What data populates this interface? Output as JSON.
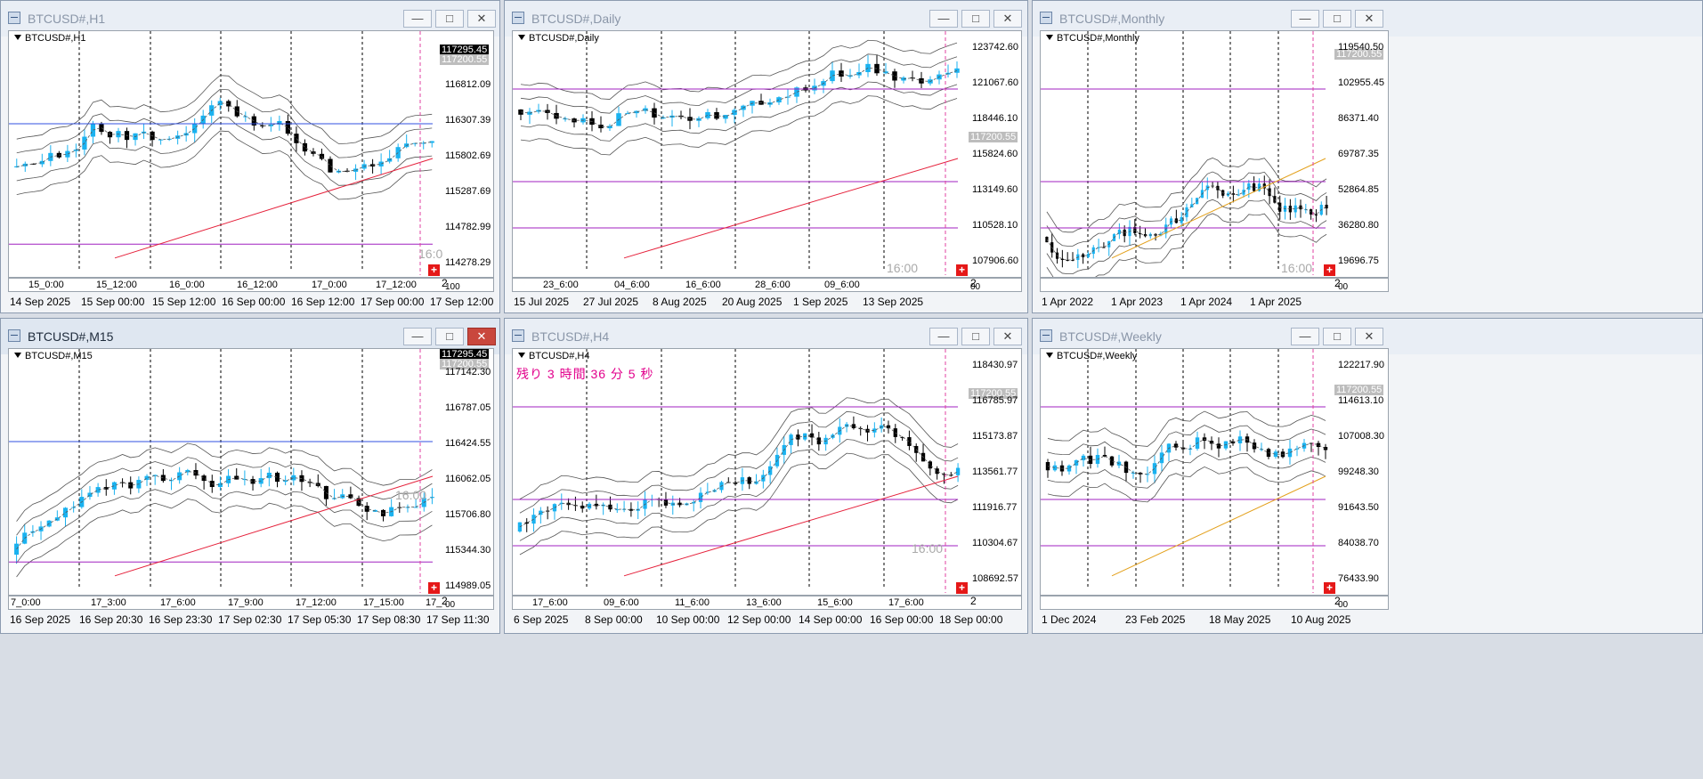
{
  "windows": [
    {
      "id": "h1",
      "title": "BTCUSD#,H1",
      "chart_label": "BTCUSD#,H1",
      "active": false,
      "prices": [
        "116812.09",
        "116307.39",
        "115802.69",
        "115287.69",
        "114782.99",
        "114278.29"
      ],
      "tag_ask": "117295.45",
      "tag_bid": "117200.55",
      "time_ticks": [
        "15_0:00",
        "15_12:00",
        "16_0:00",
        "16_12:00",
        "17_0:00",
        "17_12:00"
      ],
      "dates": [
        "14 Sep 2025",
        "15 Sep 00:00",
        "15 Sep 12:00",
        "16 Sep 00:00",
        "16 Sep 12:00",
        "17 Sep 00:00",
        "17 Sep 12:00"
      ],
      "session_label": "16:0",
      "scale_label": "2",
      "scale_sub": "100"
    },
    {
      "id": "daily",
      "title": "BTCUSD#,Daily",
      "chart_label": "BTCUSD#,Daily",
      "active": false,
      "prices": [
        "123742.60",
        "121067.60",
        "118446.10",
        "115824.60",
        "113149.60",
        "110528.10",
        "107906.60"
      ],
      "tag_bid": "117200.55",
      "time_ticks": [
        "23_6:00",
        "04_6:00",
        "16_6:00",
        "28_6:00",
        "09_6:00"
      ],
      "dates": [
        "15 Jul 2025",
        "27 Jul 2025",
        "8 Aug 2025",
        "20 Aug 2025",
        "1 Sep 2025",
        "13 Sep 2025"
      ],
      "session_label": "16:00",
      "scale_label": "2",
      "scale_sub": "00"
    },
    {
      "id": "monthly",
      "title": "BTCUSD#,Monthly",
      "chart_label": "BTCUSD#,Monthly",
      "active": false,
      "prices": [
        "119540.50",
        "102955.45",
        "86371.40",
        "69787.35",
        "52864.85",
        "36280.80",
        "19696.75"
      ],
      "tag_bid": "117200.55",
      "time_ticks": [],
      "dates": [
        "1 Apr 2022",
        "1 Apr 2023",
        "1 Apr 2024",
        "1 Apr 2025"
      ],
      "session_label": "16:00",
      "scale_label": "2",
      "scale_sub": "00"
    },
    {
      "id": "m15",
      "title": "BTCUSD#,M15",
      "chart_label": "BTCUSD#,M15",
      "active": true,
      "prices": [
        "117142.30",
        "116787.05",
        "116424.55",
        "116062.05",
        "115706.80",
        "115344.30",
        "114989.05"
      ],
      "tag_ask": "117295.45",
      "tag_bid": "117200.55",
      "time_ticks": [
        "7_0:00",
        "17_3:00",
        "17_6:00",
        "17_9:00",
        "17_12:00",
        "17_15:00",
        "17_"
      ],
      "dates": [
        "16 Sep 2025",
        "16 Sep 20:30",
        "16 Sep 23:30",
        "17 Sep 02:30",
        "17 Sep 05:30",
        "17 Sep 08:30",
        "17 Sep 11:30"
      ],
      "session_label": "16:00",
      "scale_label": "2",
      "scale_sub": "00"
    },
    {
      "id": "h4",
      "title": "BTCUSD#,H4",
      "chart_label": "BTCUSD#,H4",
      "active": false,
      "countdown": "残り 3 時間 36 分 5 秒",
      "prices": [
        "118430.97",
        "116785.97",
        "115173.87",
        "113561.77",
        "111916.77",
        "110304.67",
        "108692.57"
      ],
      "tag_bid": "117200.55",
      "time_ticks": [
        "17_6:00",
        "09_6:00",
        "11_6:00",
        "13_6:00",
        "15_6:00",
        "17_6:00"
      ],
      "dates": [
        "6 Sep 2025",
        "8 Sep 00:00",
        "10 Sep 00:00",
        "12 Sep 00:00",
        "14 Sep 00:00",
        "16 Sep 00:00",
        "18 Sep 00:00"
      ],
      "session_label": "16:00",
      "scale_label": "2",
      "scale_sub": ""
    },
    {
      "id": "weekly",
      "title": "BTCUSD#,Weekly",
      "chart_label": "BTCUSD#,Weekly",
      "active": false,
      "prices": [
        "122217.90",
        "114613.10",
        "107008.30",
        "99248.30",
        "91643.50",
        "84038.70",
        "76433.90"
      ],
      "tag_bid": "117200.55",
      "time_ticks": [],
      "dates": [
        "1 Dec 2024",
        "23 Feb 2025",
        "18 May 2025",
        "10 Aug 2025"
      ],
      "session_label": "",
      "scale_label": "2",
      "scale_sub": "00"
    }
  ],
  "colors": {
    "bull": "#1ab2f0",
    "bear": "#000000",
    "band": "#555555",
    "red_line": "#e5213b",
    "magenta": "#a020c0",
    "blue_line": "#3050e0",
    "orange": "#e3a11d",
    "pink_dash": "#e040a0"
  },
  "icons": {
    "minimize": "minimize-icon",
    "maximize": "maximize-icon",
    "close": "close-icon",
    "window": "chart-window-icon",
    "plus": "plus-icon"
  }
}
